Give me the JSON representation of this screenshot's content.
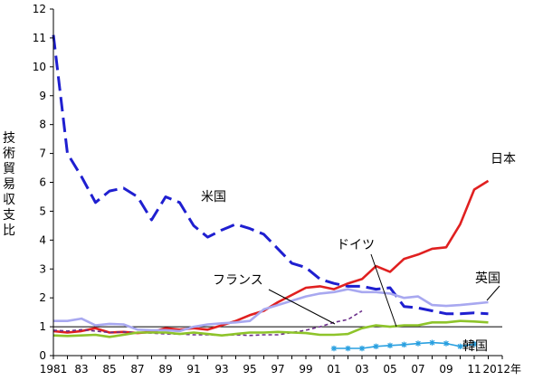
{
  "chart_data": {
    "type": "line",
    "ylabel": "技術貿易収支比",
    "ylim": [
      0,
      12
    ],
    "yticks": [
      0,
      1,
      2,
      3,
      4,
      5,
      6,
      7,
      8,
      9,
      10,
      11,
      12
    ],
    "xlim": [
      1981,
      2013
    ],
    "xticks": [
      {
        "year": 1981,
        "label": "1981"
      },
      {
        "year": 1983,
        "label": "83"
      },
      {
        "year": 1985,
        "label": "85"
      },
      {
        "year": 1987,
        "label": "87"
      },
      {
        "year": 1989,
        "label": "89"
      },
      {
        "year": 1991,
        "label": "91"
      },
      {
        "year": 1993,
        "label": "93"
      },
      {
        "year": 1995,
        "label": "95"
      },
      {
        "year": 1997,
        "label": "97"
      },
      {
        "year": 1999,
        "label": "99"
      },
      {
        "year": 2001,
        "label": "01"
      },
      {
        "year": 2003,
        "label": "03"
      },
      {
        "year": 2005,
        "label": "05"
      },
      {
        "year": 2007,
        "label": "07"
      },
      {
        "year": 2009,
        "label": "09"
      },
      {
        "year": 2011,
        "label": "11"
      },
      {
        "year": 2012,
        "label": "2012年"
      }
    ],
    "reference_line": 1,
    "series": [
      {
        "name": "米国",
        "color": "#1f1fd0",
        "style": "longdash",
        "points": [
          [
            1981,
            11.1
          ],
          [
            1982,
            7.0
          ],
          [
            1983,
            6.2
          ],
          [
            1984,
            5.3
          ],
          [
            1985,
            5.7
          ],
          [
            1986,
            5.8
          ],
          [
            1987,
            5.5
          ],
          [
            1988,
            4.7
          ],
          [
            1989,
            5.5
          ],
          [
            1990,
            5.3
          ],
          [
            1991,
            4.5
          ],
          [
            1992,
            4.1
          ],
          [
            1993,
            4.35
          ],
          [
            1994,
            4.55
          ],
          [
            1995,
            4.4
          ],
          [
            1996,
            4.2
          ],
          [
            1997,
            3.7
          ],
          [
            1998,
            3.2
          ],
          [
            1999,
            3.05
          ],
          [
            2000,
            2.65
          ],
          [
            2001,
            2.5
          ],
          [
            2002,
            2.4
          ],
          [
            2003,
            2.4
          ],
          [
            2004,
            2.3
          ],
          [
            2005,
            2.35
          ],
          [
            2006,
            1.7
          ],
          [
            2007,
            1.65
          ],
          [
            2008,
            1.55
          ],
          [
            2009,
            1.45
          ],
          [
            2010,
            1.45
          ],
          [
            2011,
            1.48
          ],
          [
            2012,
            1.45
          ]
        ]
      },
      {
        "name": "日本",
        "color": "#e02020",
        "style": "solid",
        "points": [
          [
            1981,
            0.85
          ],
          [
            1982,
            0.8
          ],
          [
            1983,
            0.85
          ],
          [
            1984,
            0.95
          ],
          [
            1985,
            0.8
          ],
          [
            1986,
            0.82
          ],
          [
            1987,
            0.78
          ],
          [
            1988,
            0.82
          ],
          [
            1989,
            0.95
          ],
          [
            1990,
            0.9
          ],
          [
            1991,
            0.95
          ],
          [
            1992,
            0.9
          ],
          [
            1993,
            1.05
          ],
          [
            1994,
            1.2
          ],
          [
            1995,
            1.4
          ],
          [
            1996,
            1.55
          ],
          [
            1997,
            1.85
          ],
          [
            1998,
            2.1
          ],
          [
            1999,
            2.35
          ],
          [
            2000,
            2.4
          ],
          [
            2001,
            2.3
          ],
          [
            2002,
            2.5
          ],
          [
            2003,
            2.65
          ],
          [
            2004,
            3.1
          ],
          [
            2005,
            2.9
          ],
          [
            2006,
            3.35
          ],
          [
            2007,
            3.5
          ],
          [
            2008,
            3.7
          ],
          [
            2009,
            3.75
          ],
          [
            2010,
            4.55
          ],
          [
            2011,
            5.75
          ],
          [
            2012,
            6.05
          ]
        ]
      },
      {
        "name": "英国",
        "color": "#a8a8f0",
        "style": "solid",
        "points": [
          [
            1981,
            1.2
          ],
          [
            1982,
            1.2
          ],
          [
            1983,
            1.28
          ],
          [
            1984,
            1.05
          ],
          [
            1985,
            1.1
          ],
          [
            1986,
            1.08
          ],
          [
            1987,
            0.9
          ],
          [
            1988,
            0.88
          ],
          [
            1989,
            0.88
          ],
          [
            1990,
            0.85
          ],
          [
            1991,
            1.0
          ],
          [
            1992,
            1.08
          ],
          [
            1993,
            1.12
          ],
          [
            1994,
            1.15
          ],
          [
            1995,
            1.2
          ],
          [
            1996,
            1.6
          ],
          [
            1997,
            1.75
          ],
          [
            1998,
            1.9
          ],
          [
            1999,
            2.05
          ],
          [
            2000,
            2.15
          ],
          [
            2001,
            2.2
          ],
          [
            2002,
            2.3
          ],
          [
            2003,
            2.2
          ],
          [
            2004,
            2.2
          ],
          [
            2005,
            2.15
          ],
          [
            2006,
            2.0
          ],
          [
            2007,
            2.05
          ],
          [
            2008,
            1.75
          ],
          [
            2009,
            1.72
          ],
          [
            2010,
            1.75
          ],
          [
            2011,
            1.8
          ],
          [
            2012,
            1.85
          ]
        ]
      },
      {
        "name": "フランス",
        "color": "#6b2f8a",
        "style": "dash",
        "points": [
          [
            1981,
            0.88
          ],
          [
            1982,
            0.85
          ],
          [
            1983,
            0.9
          ],
          [
            1984,
            0.85
          ],
          [
            1985,
            0.8
          ],
          [
            1986,
            0.82
          ],
          [
            1987,
            0.8
          ],
          [
            1988,
            0.78
          ],
          [
            1989,
            0.75
          ],
          [
            1990,
            0.75
          ],
          [
            1991,
            0.72
          ],
          [
            1992,
            0.72
          ],
          [
            1993,
            0.7
          ],
          [
            1994,
            0.72
          ],
          [
            1995,
            0.7
          ],
          [
            1996,
            0.72
          ],
          [
            1997,
            0.72
          ],
          [
            1998,
            0.8
          ],
          [
            1999,
            0.88
          ],
          [
            2000,
            1.0
          ],
          [
            2001,
            1.15
          ],
          [
            2002,
            1.25
          ],
          [
            2003,
            1.55
          ]
        ]
      },
      {
        "name": "ドイツ",
        "color": "#8ec42a",
        "style": "solid",
        "points": [
          [
            1981,
            0.7
          ],
          [
            1982,
            0.68
          ],
          [
            1983,
            0.7
          ],
          [
            1984,
            0.72
          ],
          [
            1985,
            0.65
          ],
          [
            1986,
            0.72
          ],
          [
            1987,
            0.8
          ],
          [
            1988,
            0.8
          ],
          [
            1989,
            0.8
          ],
          [
            1990,
            0.75
          ],
          [
            1991,
            0.8
          ],
          [
            1992,
            0.75
          ],
          [
            1993,
            0.7
          ],
          [
            1994,
            0.75
          ],
          [
            1995,
            0.8
          ],
          [
            1996,
            0.8
          ],
          [
            1997,
            0.82
          ],
          [
            1998,
            0.8
          ],
          [
            1999,
            0.78
          ],
          [
            2000,
            0.72
          ],
          [
            2001,
            0.72
          ],
          [
            2002,
            0.75
          ],
          [
            2003,
            0.95
          ],
          [
            2004,
            1.05
          ],
          [
            2005,
            1.0
          ],
          [
            2006,
            1.05
          ],
          [
            2007,
            1.05
          ],
          [
            2008,
            1.15
          ],
          [
            2009,
            1.15
          ],
          [
            2010,
            1.2
          ],
          [
            2011,
            1.18
          ],
          [
            2012,
            1.15
          ]
        ]
      },
      {
        "name": "韓国",
        "color": "#2aa0e0",
        "style": "star",
        "points": [
          [
            2001,
            0.25
          ],
          [
            2002,
            0.25
          ],
          [
            2003,
            0.25
          ],
          [
            2004,
            0.32
          ],
          [
            2005,
            0.35
          ],
          [
            2006,
            0.38
          ],
          [
            2007,
            0.42
          ],
          [
            2008,
            0.45
          ],
          [
            2009,
            0.42
          ],
          [
            2010,
            0.32
          ],
          [
            2011,
            0.4
          ]
        ]
      }
    ],
    "annotations": [
      {
        "series": "米国",
        "text": "米国"
      },
      {
        "series": "日本",
        "text": "日本"
      },
      {
        "series": "英国",
        "text": "英国"
      },
      {
        "series": "フランス",
        "text": "フランス"
      },
      {
        "series": "ドイツ",
        "text": "ドイツ"
      },
      {
        "series": "韓国",
        "text": "韓国"
      }
    ]
  }
}
